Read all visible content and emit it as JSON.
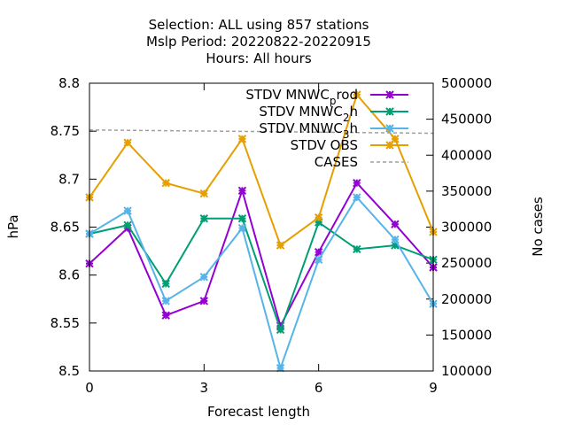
{
  "chart_data": {
    "type": "line",
    "title_lines": [
      "Selection: ALL using   857 stations",
      "Mslp   Period: 20220822-20220915",
      "Hours:  All hours"
    ],
    "xlabel": "Forecast length",
    "ylabel": "hPa",
    "y2label": "No cases",
    "x": [
      0,
      1,
      2,
      3,
      4,
      5,
      6,
      7,
      8,
      9
    ],
    "xlim": [
      0,
      9
    ],
    "xticks": [
      0,
      3,
      6,
      9
    ],
    "ylim": [
      8.5,
      8.8
    ],
    "yticks": [
      8.5,
      8.55,
      8.6,
      8.65,
      8.7,
      8.75,
      8.8
    ],
    "ytick_labels": [
      "8.5",
      "8.55",
      "8.6",
      "8.65",
      "8.7",
      "8.75",
      "8.8"
    ],
    "y2lim": [
      100000,
      500000
    ],
    "y2ticks": [
      100000,
      150000,
      200000,
      250000,
      300000,
      350000,
      400000,
      450000,
      500000
    ],
    "y2tick_labels": [
      "100000",
      "150000",
      "200000",
      "250000",
      "300000",
      "350000",
      "400000",
      "450000",
      "500000"
    ],
    "legend_position": "top-right",
    "grid": false,
    "series": [
      {
        "name": "STDV MNWC_prod",
        "legend_main": "STDV MNWC",
        "legend_sub": "p",
        "legend_tail": "rod",
        "color": "#9400d3",
        "axis": "y",
        "values": [
          8.612,
          8.649,
          8.558,
          8.573,
          8.688,
          8.547,
          8.624,
          8.696,
          8.653,
          8.608
        ]
      },
      {
        "name": "STDV MNWC_2h",
        "legend_main": "STDV MNWC",
        "legend_sub": "2",
        "legend_tail": "h",
        "color": "#009e73",
        "axis": "y",
        "values": [
          8.643,
          8.652,
          8.591,
          8.659,
          8.659,
          8.543,
          8.655,
          8.627,
          8.631,
          8.616
        ]
      },
      {
        "name": "STDV MNWC_3h",
        "legend_main": "STDV MNWC",
        "legend_sub": "3",
        "legend_tail": "h",
        "color": "#56b4e9",
        "axis": "y",
        "values": [
          8.643,
          8.667,
          8.573,
          8.598,
          8.649,
          8.503,
          8.616,
          8.681,
          8.637,
          8.57
        ]
      },
      {
        "name": "STDV OBS",
        "legend_main": "STDV OBS",
        "legend_sub": "",
        "legend_tail": "",
        "color": "#e69f00",
        "axis": "y",
        "values": [
          8.681,
          8.738,
          8.696,
          8.685,
          8.742,
          8.631,
          8.66,
          8.788,
          8.742,
          8.645
        ]
      },
      {
        "name": "CASES",
        "legend_main": "CASES",
        "legend_sub": "",
        "legend_tail": "",
        "color": "#a0a0a0",
        "axis": "y2",
        "dashed": true,
        "values": [
          435000,
          434500,
          434000,
          433500,
          433000,
          432500,
          432000,
          431500,
          431000,
          430500
        ]
      }
    ]
  }
}
